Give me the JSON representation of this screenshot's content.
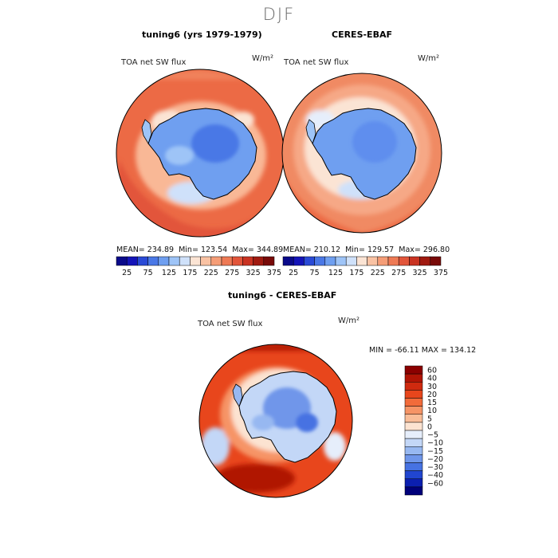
{
  "figure": {
    "title": "DJF"
  },
  "chart_data": [
    {
      "type": "heatmap",
      "title": "tuning6 (yrs 1979-1979)",
      "variable": "TOA net SW flux",
      "units": "W/m²",
      "stats": {
        "mean_label": "MEAN=",
        "mean": "234.89",
        "min_label": "Min=",
        "min": "123.54",
        "max_label": "Max=",
        "max": "344.89"
      },
      "colorbar": {
        "ticks": [
          "25",
          "75",
          "125",
          "175",
          "225",
          "275",
          "325",
          "375"
        ],
        "colors": [
          "#0a0a8a",
          "#1414b8",
          "#2a4ad6",
          "#4a78e6",
          "#6f9ff0",
          "#9ec4f7",
          "#cfe1fa",
          "#fbe4d4",
          "#f9c2a3",
          "#f59d77",
          "#ee7a55",
          "#e2553a",
          "#c93322",
          "#a01a10",
          "#780a08"
        ]
      }
    },
    {
      "type": "heatmap",
      "title": "CERES-EBAF",
      "variable": "TOA net SW flux",
      "units": "W/m²",
      "stats": {
        "mean_label": "MEAN=",
        "mean": "210.12",
        "min_label": "Min=",
        "min": "129.57",
        "max_label": "Max=",
        "max": "296.80"
      },
      "colorbar": {
        "ticks": [
          "25",
          "75",
          "125",
          "175",
          "225",
          "275",
          "325",
          "375"
        ],
        "colors": [
          "#0a0a8a",
          "#1414b8",
          "#2a4ad6",
          "#4a78e6",
          "#6f9ff0",
          "#9ec4f7",
          "#cfe1fa",
          "#fbe4d4",
          "#f9c2a3",
          "#f59d77",
          "#ee7a55",
          "#e2553a",
          "#c93322",
          "#a01a10",
          "#780a08"
        ]
      }
    },
    {
      "type": "heatmap",
      "title": "tuning6 - CERES-EBAF",
      "variable": "TOA net SW flux",
      "units": "W/m²",
      "minmax_text": "MIN = -66.11  MAX = 134.12",
      "colorbar": {
        "labels_top_to_bottom": [
          "60",
          "40",
          "30",
          "20",
          "15",
          "10",
          "5",
          "0",
          "−5",
          "−10",
          "−15",
          "−20",
          "−30",
          "−40",
          "−60"
        ],
        "colors_top_to_bottom": [
          "#8b0000",
          "#b01405",
          "#cf2a0f",
          "#e8461c",
          "#f26b3a",
          "#f69466",
          "#f9bd98",
          "#fce3d1",
          "#e6eefb",
          "#c3d7f7",
          "#97b8f1",
          "#6f96ea",
          "#4672e2",
          "#2146d0",
          "#0b1fb0",
          "#00007a"
        ]
      }
    }
  ]
}
